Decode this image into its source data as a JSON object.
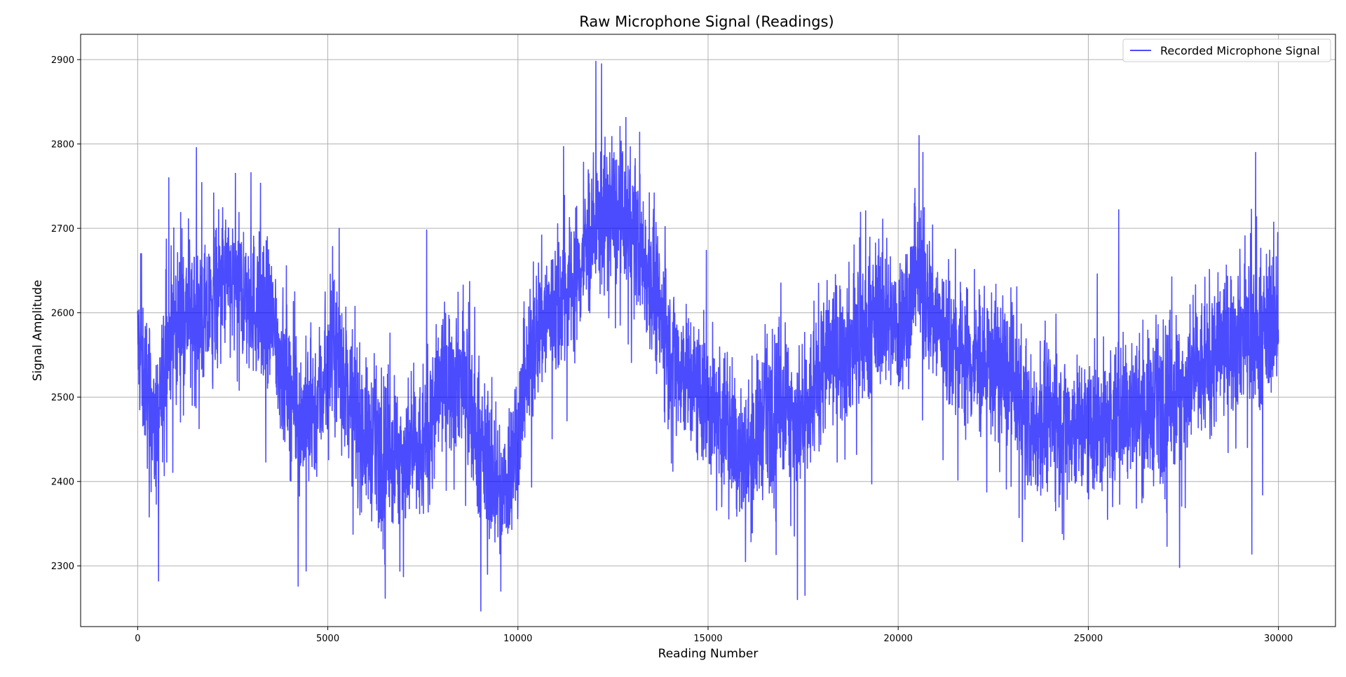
{
  "chart_data": {
    "type": "line",
    "title": "Raw Microphone Signal (Readings)",
    "xlabel": "Reading Number",
    "ylabel": "Signal Amplitude",
    "xlim": [
      -1500,
      31500
    ],
    "ylim": [
      2228,
      2930
    ],
    "x_ticks": [
      0,
      5000,
      10000,
      15000,
      20000,
      25000,
      30000
    ],
    "y_ticks": [
      2300,
      2400,
      2500,
      2600,
      2700,
      2800,
      2900
    ],
    "grid": true,
    "legend_position": "top-right",
    "colors": {
      "series": "#0000ff",
      "grid": "#b0b0b0"
    },
    "series": [
      {
        "name": "Recorded Microphone Signal",
        "num_points": 30000,
        "x_range": [
          0,
          30000
        ],
        "trend_x": [
          0,
          300,
          500,
          800,
          1200,
          1800,
          2200,
          2800,
          3500,
          3900,
          4300,
          4700,
          5200,
          5600,
          6000,
          6500,
          7000,
          7500,
          8000,
          8500,
          9000,
          9600,
          10000,
          10500,
          11000,
          11500,
          12000,
          12500,
          13000,
          13500,
          14000,
          14500,
          15000,
          15500,
          16000,
          16500,
          17000,
          17500,
          18000,
          18500,
          19000,
          19500,
          20000,
          20500,
          21000,
          21500,
          22000,
          22500,
          23000,
          23500,
          24000,
          24500,
          25000,
          25500,
          26000,
          26500,
          27000,
          27500,
          28000,
          28500,
          29000,
          29500,
          30000
        ],
        "trend_y": [
          2560,
          2500,
          2450,
          2570,
          2600,
          2590,
          2640,
          2620,
          2590,
          2520,
          2470,
          2490,
          2560,
          2500,
          2450,
          2440,
          2430,
          2430,
          2520,
          2530,
          2440,
          2380,
          2460,
          2580,
          2610,
          2640,
          2700,
          2720,
          2700,
          2640,
          2560,
          2520,
          2490,
          2470,
          2420,
          2480,
          2500,
          2460,
          2540,
          2560,
          2570,
          2600,
          2580,
          2640,
          2590,
          2560,
          2540,
          2540,
          2520,
          2460,
          2480,
          2470,
          2460,
          2470,
          2490,
          2480,
          2500,
          2510,
          2530,
          2560,
          2580,
          2570,
          2600
        ],
        "spikes": [
          [
            100,
            2670
          ],
          [
            550,
            2282
          ],
          [
            820,
            2760
          ],
          [
            2000,
            2742
          ],
          [
            2980,
            2766
          ],
          [
            5300,
            2700
          ],
          [
            7600,
            2698
          ],
          [
            9200,
            2290
          ],
          [
            9550,
            2270
          ],
          [
            11200,
            2797
          ],
          [
            12050,
            2898
          ],
          [
            12200,
            2895
          ],
          [
            13200,
            2814
          ],
          [
            17350,
            2260
          ],
          [
            17550,
            2265
          ],
          [
            20550,
            2810
          ],
          [
            20650,
            2790
          ],
          [
            25800,
            2722
          ],
          [
            27400,
            2298
          ],
          [
            29400,
            2790
          ],
          [
            29300,
            2314
          ]
        ]
      }
    ]
  }
}
